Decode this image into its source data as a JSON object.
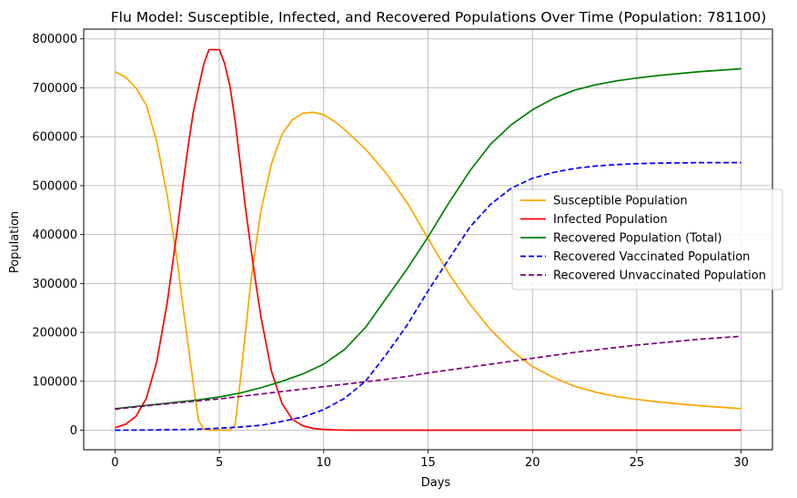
{
  "chart_data": {
    "type": "line",
    "title": "Flu Model: Susceptible, Infected, and Recovered Populations Over Time (Population: 781100)",
    "xlabel": "Days",
    "ylabel": "Population",
    "xlim": [
      -1.5,
      31.5
    ],
    "ylim": [
      -40000,
      820000
    ],
    "xticks": [
      0,
      5,
      10,
      15,
      20,
      25,
      30
    ],
    "yticks": [
      0,
      100000,
      200000,
      300000,
      400000,
      500000,
      600000,
      700000,
      800000
    ],
    "grid": true,
    "legend_position": "center-right",
    "series": [
      {
        "name": "Susceptible Population",
        "color": "#ffa500",
        "dash": "solid",
        "x": [
          0,
          0.5,
          1,
          1.5,
          2,
          2.5,
          3,
          3.25,
          3.5,
          3.75,
          4,
          4.25,
          4.5,
          4.75,
          5,
          5.25,
          5.5,
          5.75,
          6,
          6.25,
          6.5,
          6.75,
          7,
          7.5,
          8,
          8.5,
          9,
          9.5,
          10,
          10.5,
          11,
          12,
          13,
          14,
          15,
          16,
          17,
          18,
          19,
          20,
          21,
          22,
          23,
          24,
          25,
          26,
          27,
          28,
          29,
          30
        ],
        "y": [
          733000,
          722000,
          700000,
          665000,
          590000,
          480000,
          340000,
          255000,
          175000,
          95000,
          20000,
          3000,
          0,
          0,
          0,
          0,
          0,
          10000,
          100000,
          200000,
          300000,
          380000,
          450000,
          545000,
          605000,
          635000,
          648000,
          650000,
          645000,
          632000,
          615000,
          575000,
          525000,
          465000,
          392000,
          320000,
          258000,
          205000,
          163000,
          130000,
          108000,
          90000,
          78000,
          69000,
          63000,
          58000,
          54000,
          50000,
          47000,
          44000
        ]
      },
      {
        "name": "Infected Population",
        "color": "#ff0000",
        "dash": "solid",
        "x": [
          0,
          0.5,
          1,
          1.5,
          2,
          2.5,
          3,
          3.25,
          3.5,
          3.75,
          4,
          4.25,
          4.5,
          4.75,
          5,
          5.25,
          5.5,
          5.75,
          6,
          6.25,
          6.5,
          6.75,
          7,
          7.5,
          8,
          8.5,
          9,
          9.5,
          10,
          10.5,
          11,
          12,
          13,
          14,
          15,
          16,
          17,
          18,
          19,
          20,
          21,
          22,
          23,
          24,
          25,
          26,
          27,
          28,
          29,
          30
        ],
        "y": [
          5000,
          12000,
          28000,
          65000,
          140000,
          260000,
          415000,
          500000,
          580000,
          650000,
          700000,
          748000,
          778000,
          778000,
          778000,
          750000,
          705000,
          635000,
          545000,
          455000,
          375000,
          300000,
          230000,
          120000,
          55000,
          22000,
          9000,
          3500,
          1500,
          500,
          100,
          0,
          0,
          0,
          0,
          0,
          0,
          0,
          0,
          0,
          0,
          0,
          0,
          0,
          0,
          0,
          0,
          0,
          0,
          0
        ]
      },
      {
        "name": "Recovered Population (Total)",
        "color": "#008000",
        "dash": "solid",
        "x": [
          0,
          2,
          4,
          5,
          6,
          7,
          8,
          9,
          10,
          11,
          12,
          13,
          14,
          15,
          16,
          17,
          18,
          19,
          20,
          21,
          22,
          23,
          24,
          25,
          26,
          27,
          28,
          29,
          30
        ],
        "y": [
          44000,
          53000,
          62000,
          68000,
          76000,
          87000,
          100000,
          115000,
          135000,
          165000,
          210000,
          270000,
          330000,
          395000,
          465000,
          530000,
          585000,
          625000,
          655000,
          678000,
          695000,
          706000,
          714000,
          720000,
          725000,
          729000,
          733000,
          736000,
          739000
        ]
      },
      {
        "name": "Recovered Vaccinated Population",
        "color": "#0000ff",
        "dash": "dashed",
        "x": [
          0,
          2,
          4,
          5,
          6,
          7,
          8,
          9,
          10,
          11,
          12,
          13,
          14,
          15,
          16,
          17,
          18,
          19,
          20,
          21,
          22,
          23,
          24,
          25,
          26,
          27,
          28,
          29,
          30
        ],
        "y": [
          0,
          500,
          2000,
          4000,
          6500,
          10000,
          18000,
          27000,
          42000,
          65000,
          100000,
          155000,
          215000,
          285000,
          350000,
          415000,
          462000,
          495000,
          515000,
          527000,
          535000,
          540000,
          543000,
          545000,
          546000,
          546500,
          547000,
          547000,
          547000
        ]
      },
      {
        "name": "Recovered Unvaccinated Population",
        "color": "#800080",
        "dash": "dashed",
        "x": [
          0,
          2,
          4,
          5,
          6,
          7,
          8,
          9,
          10,
          11,
          12,
          13,
          14,
          15,
          16,
          17,
          18,
          19,
          20,
          21,
          22,
          23,
          24,
          25,
          26,
          27,
          28,
          29,
          30
        ],
        "y": [
          43000,
          52000,
          60000,
          64000,
          69000,
          74000,
          79000,
          84000,
          89000,
          94000,
          99000,
          104000,
          110000,
          117000,
          123000,
          129000,
          135000,
          141000,
          147000,
          153000,
          159000,
          164000,
          169000,
          174000,
          178000,
          182000,
          186000,
          189000,
          192000
        ]
      }
    ]
  }
}
